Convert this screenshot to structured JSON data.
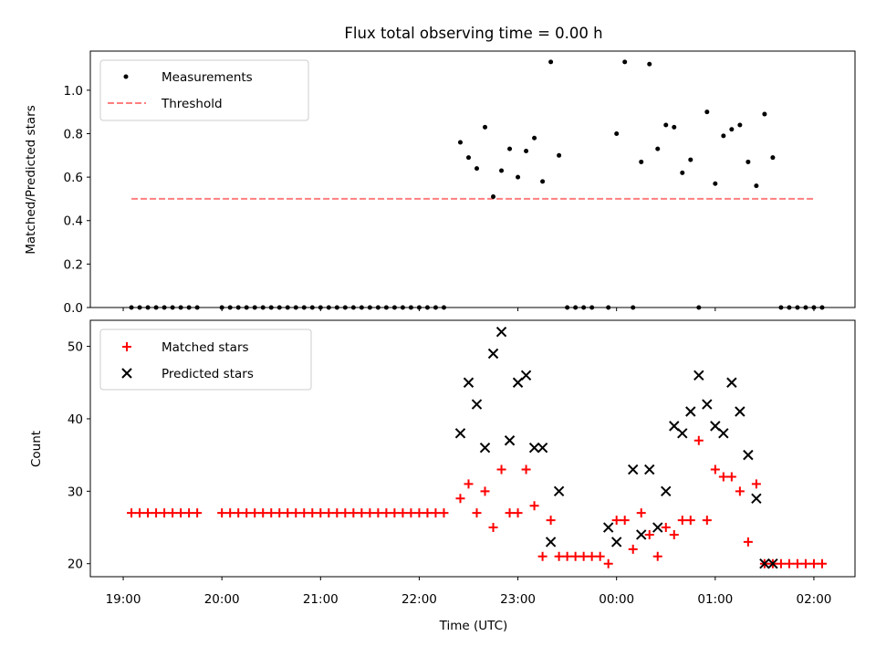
{
  "chart_data": [
    {
      "type": "scatter",
      "title": "Flux total observing time = 0.00 h",
      "xlabel": "",
      "ylabel": "Matched/Predicted stars",
      "xlim": [
        "18:40",
        "02:25"
      ],
      "ylim": [
        0,
        1.18
      ],
      "yticks": [
        "0.0",
        "0.2",
        "0.4",
        "0.6",
        "0.8",
        "1.0"
      ],
      "legend": {
        "placement": "upper-left",
        "entries": [
          "Measurements",
          "Threshold"
        ]
      },
      "colors": {
        "measurements": "#000000",
        "threshold": "#ff7f7f"
      },
      "series": [
        {
          "name": "Measurements",
          "x": [
            "19:05",
            "19:10",
            "19:15",
            "19:20",
            "19:25",
            "19:30",
            "19:35",
            "19:40",
            "19:45",
            "20:00",
            "20:05",
            "20:10",
            "20:15",
            "20:20",
            "20:25",
            "20:30",
            "20:35",
            "20:40",
            "20:45",
            "20:50",
            "20:55",
            "21:00",
            "21:05",
            "21:10",
            "21:15",
            "21:20",
            "21:25",
            "21:30",
            "21:35",
            "21:40",
            "21:45",
            "21:50",
            "21:55",
            "22:00",
            "22:05",
            "22:10",
            "22:15",
            "22:25",
            "22:30",
            "22:35",
            "22:40",
            "22:45",
            "22:50",
            "22:55",
            "23:00",
            "23:05",
            "23:10",
            "23:15",
            "23:20",
            "23:25",
            "23:30",
            "23:35",
            "23:40",
            "23:45",
            "23:55",
            "00:00",
            "00:05",
            "00:10",
            "00:15",
            "00:20",
            "00:25",
            "00:30",
            "00:35",
            "00:40",
            "00:45",
            "00:50",
            "00:55",
            "01:00",
            "01:05",
            "01:10",
            "01:15",
            "01:20",
            "01:25",
            "01:30",
            "01:35",
            "01:40",
            "01:45",
            "01:50",
            "01:55",
            "02:00",
            "02:05"
          ],
          "y": [
            0,
            0,
            0,
            0,
            0,
            0,
            0,
            0,
            0,
            0,
            0,
            0,
            0,
            0,
            0,
            0,
            0,
            0,
            0,
            0,
            0,
            0,
            0,
            0,
            0,
            0,
            0,
            0,
            0,
            0,
            0,
            0,
            0,
            0,
            0,
            0,
            0,
            0.76,
            0.69,
            0.64,
            0.83,
            0.51,
            0.63,
            0.73,
            0.6,
            0.72,
            0.78,
            0.58,
            1.13,
            0.7,
            0,
            0,
            0,
            0,
            0,
            0.8,
            1.13,
            0,
            0.67,
            1.12,
            0.73,
            0.84,
            0.83,
            0.62,
            0.68,
            0,
            0.9,
            0.57,
            0.79,
            0.82,
            0.84,
            0.67,
            0.56,
            0.89,
            0.69,
            0,
            0,
            0,
            0,
            0,
            0
          ]
        },
        {
          "name": "Threshold",
          "x": [
            "19:05",
            "02:00"
          ],
          "y": [
            0.5,
            0.5
          ]
        }
      ]
    },
    {
      "type": "scatter",
      "title": "",
      "xlabel": "Time (UTC)",
      "ylabel": "Count",
      "xlim": [
        "18:40",
        "02:25"
      ],
      "ylim": [
        18.2,
        53.6
      ],
      "xticks": [
        "19:00",
        "20:00",
        "21:00",
        "22:00",
        "23:00",
        "00:00",
        "01:00",
        "02:00"
      ],
      "yticks": [
        "20",
        "30",
        "40",
        "50"
      ],
      "legend": {
        "placement": "upper-left",
        "entries": [
          "Matched stars",
          "Predicted stars"
        ]
      },
      "colors": {
        "matched": "#ff0000",
        "predicted": "#000000"
      },
      "series": [
        {
          "name": "Matched stars",
          "x": [
            "19:05",
            "19:10",
            "19:15",
            "19:20",
            "19:25",
            "19:30",
            "19:35",
            "19:40",
            "19:45",
            "20:00",
            "20:05",
            "20:10",
            "20:15",
            "20:20",
            "20:25",
            "20:30",
            "20:35",
            "20:40",
            "20:45",
            "20:50",
            "20:55",
            "21:00",
            "21:05",
            "21:10",
            "21:15",
            "21:20",
            "21:25",
            "21:30",
            "21:35",
            "21:40",
            "21:45",
            "21:50",
            "21:55",
            "22:00",
            "22:05",
            "22:10",
            "22:15",
            "22:25",
            "22:30",
            "22:35",
            "22:40",
            "22:45",
            "22:50",
            "22:55",
            "23:00",
            "23:05",
            "23:10",
            "23:15",
            "23:20",
            "23:25",
            "23:30",
            "23:35",
            "23:40",
            "23:45",
            "23:50",
            "23:55",
            "00:00",
            "00:05",
            "00:10",
            "00:15",
            "00:20",
            "00:25",
            "00:30",
            "00:35",
            "00:40",
            "00:45",
            "00:50",
            "00:55",
            "01:00",
            "01:05",
            "01:10",
            "01:15",
            "01:20",
            "01:25",
            "01:30",
            "01:35",
            "01:40",
            "01:45",
            "01:50",
            "01:55",
            "02:00",
            "02:05"
          ],
          "y": [
            27,
            27,
            27,
            27,
            27,
            27,
            27,
            27,
            27,
            27,
            27,
            27,
            27,
            27,
            27,
            27,
            27,
            27,
            27,
            27,
            27,
            27,
            27,
            27,
            27,
            27,
            27,
            27,
            27,
            27,
            27,
            27,
            27,
            27,
            27,
            27,
            27,
            29,
            31,
            27,
            30,
            25,
            33,
            27,
            27,
            33,
            28,
            21,
            26,
            21,
            21,
            21,
            21,
            21,
            21,
            20,
            26,
            26,
            22,
            27,
            24,
            21,
            25,
            24,
            26,
            26,
            37,
            26,
            33,
            32,
            32,
            30,
            23,
            31,
            20,
            20,
            20,
            20,
            20,
            20,
            20,
            20
          ]
        },
        {
          "name": "Predicted stars",
          "x": [
            "22:25",
            "22:30",
            "22:35",
            "22:40",
            "22:45",
            "22:50",
            "22:55",
            "23:00",
            "23:05",
            "23:10",
            "23:15",
            "23:20",
            "23:25",
            "23:55",
            "00:00",
            "00:10",
            "00:15",
            "00:20",
            "00:25",
            "00:30",
            "00:35",
            "00:40",
            "00:45",
            "00:50",
            "00:55",
            "01:00",
            "01:05",
            "01:10",
            "01:15",
            "01:20",
            "01:25",
            "01:30",
            "01:35"
          ],
          "y": [
            38,
            45,
            42,
            36,
            49,
            52,
            37,
            45,
            46,
            36,
            36,
            23,
            30,
            25,
            23,
            33,
            24,
            33,
            25,
            30,
            39,
            38,
            41,
            46,
            42,
            39,
            38,
            45,
            41,
            35,
            29,
            20,
            20
          ]
        }
      ]
    }
  ]
}
